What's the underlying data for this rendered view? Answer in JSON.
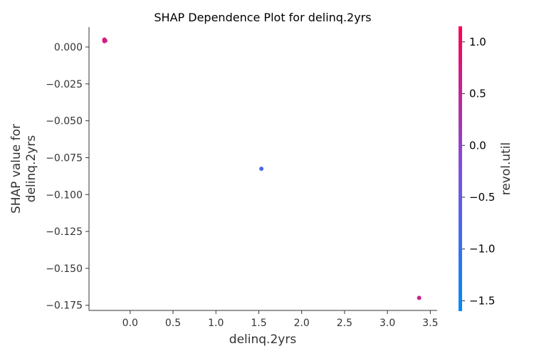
{
  "chart_data": {
    "type": "scatter",
    "title": "SHAP Dependence Plot for delinq.2yrs",
    "xlabel": "delinq.2yrs",
    "ylabel_lines": [
      "SHAP value for",
      "delinq.2yrs"
    ],
    "xlim": [
      -0.48,
      3.58
    ],
    "ylim": [
      -0.1785,
      0.0135
    ],
    "xticks": [
      0.0,
      0.5,
      1.0,
      1.5,
      2.0,
      2.5,
      3.0,
      3.5
    ],
    "xtick_labels": [
      "0.0",
      "0.5",
      "1.0",
      "1.5",
      "2.0",
      "2.5",
      "3.0",
      "3.5"
    ],
    "yticks": [
      0.0,
      -0.025,
      -0.05,
      -0.075,
      -0.1,
      -0.125,
      -0.15,
      -0.175
    ],
    "ytick_labels": [
      "0.000",
      "−0.025",
      "−0.050",
      "−0.075",
      "−0.100",
      "−0.125",
      "−0.150",
      "−0.175"
    ],
    "points": [
      {
        "x": -0.3,
        "y": 0.0045,
        "color_value": 1.0
      },
      {
        "x": -0.3,
        "y": 0.004,
        "color_value": 0.9
      },
      {
        "x": -0.3,
        "y": 0.005,
        "color_value": 0.8
      },
      {
        "x": -0.29,
        "y": 0.0043,
        "color_value": 0.6
      },
      {
        "x": 1.53,
        "y": -0.0825,
        "color_value": -0.8
      },
      {
        "x": 3.37,
        "y": -0.17,
        "color_value": 0.6
      }
    ],
    "colorbar": {
      "label": "revol.util",
      "range": [
        -1.6,
        1.15
      ],
      "ticks": [
        1.0,
        0.5,
        0.0,
        -0.5,
        -1.0,
        -1.5
      ],
      "tick_labels": [
        "1.0",
        "0.5",
        "0.0",
        "−0.5",
        "−1.0",
        "−1.5"
      ],
      "color_low": "#008afb",
      "color_mid": "#7e4fe0",
      "color_high": "#ff0052"
    }
  }
}
